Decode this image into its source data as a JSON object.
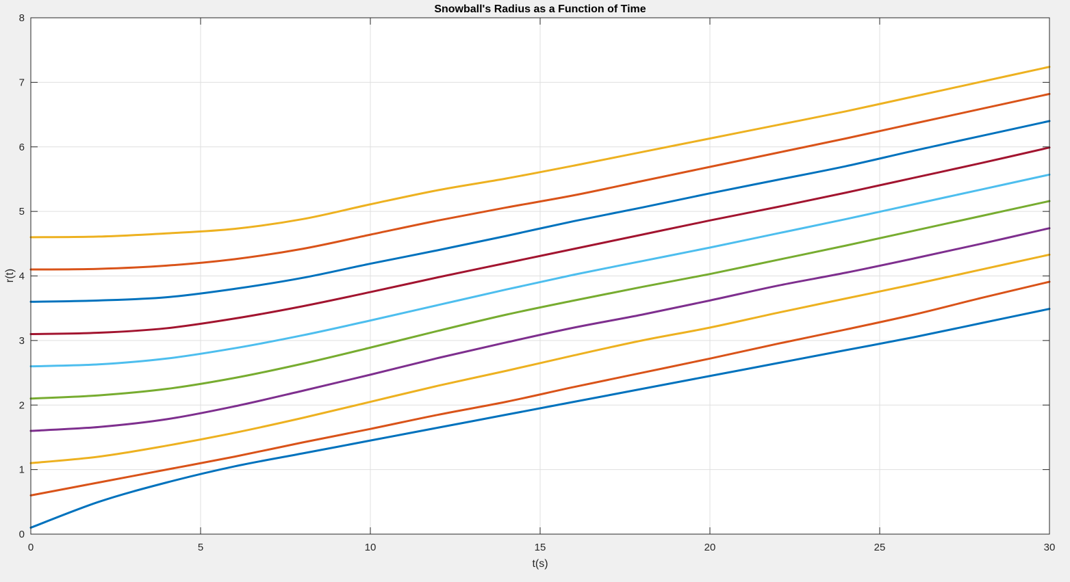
{
  "chart_data": {
    "type": "line",
    "title": "Snowball's Radius as a Function of Time",
    "xlabel": "t(s)",
    "ylabel": "r(t)",
    "xlim": [
      0,
      30
    ],
    "ylim": [
      0,
      8
    ],
    "xticks": [
      0,
      5,
      10,
      15,
      20,
      25,
      30
    ],
    "yticks": [
      0,
      1,
      2,
      3,
      4,
      5,
      6,
      7,
      8
    ],
    "grid": true,
    "legend": "none",
    "x": [
      0,
      2,
      4,
      6,
      8,
      10,
      12,
      14,
      16,
      18,
      20,
      22,
      24,
      26,
      28,
      30
    ],
    "series": [
      {
        "color": "#0072BD",
        "values": [
          0.1,
          0.5,
          0.8,
          1.05,
          1.25,
          1.45,
          1.65,
          1.85,
          2.05,
          2.25,
          2.45,
          2.65,
          2.85,
          3.05,
          3.27,
          3.49
        ]
      },
      {
        "color": "#D95319",
        "values": [
          0.6,
          0.8,
          1.0,
          1.2,
          1.42,
          1.63,
          1.85,
          2.05,
          2.28,
          2.5,
          2.72,
          2.95,
          3.17,
          3.4,
          3.66,
          3.91
        ]
      },
      {
        "color": "#EDB120",
        "values": [
          1.1,
          1.2,
          1.37,
          1.57,
          1.8,
          2.05,
          2.3,
          2.53,
          2.77,
          3.0,
          3.2,
          3.43,
          3.65,
          3.87,
          4.1,
          4.33
        ]
      },
      {
        "color": "#7E2F8E",
        "values": [
          1.6,
          1.66,
          1.78,
          1.98,
          2.22,
          2.47,
          2.73,
          2.97,
          3.2,
          3.4,
          3.62,
          3.85,
          4.05,
          4.27,
          4.5,
          4.74
        ]
      },
      {
        "color": "#77AC30",
        "values": [
          2.1,
          2.15,
          2.25,
          2.42,
          2.64,
          2.89,
          3.15,
          3.4,
          3.62,
          3.83,
          4.03,
          4.25,
          4.47,
          4.7,
          4.93,
          5.16
        ]
      },
      {
        "color": "#4DBEEE",
        "values": [
          2.6,
          2.63,
          2.72,
          2.88,
          3.08,
          3.31,
          3.55,
          3.79,
          4.02,
          4.23,
          4.44,
          4.66,
          4.88,
          5.11,
          5.34,
          5.57
        ]
      },
      {
        "color": "#A2142F",
        "values": [
          3.1,
          3.12,
          3.19,
          3.34,
          3.53,
          3.75,
          3.98,
          4.2,
          4.42,
          4.64,
          4.86,
          5.07,
          5.29,
          5.52,
          5.75,
          5.99
        ]
      },
      {
        "color": "#0072BD",
        "values": [
          3.6,
          3.62,
          3.67,
          3.8,
          3.97,
          4.19,
          4.4,
          4.62,
          4.85,
          5.06,
          5.28,
          5.49,
          5.7,
          5.94,
          6.17,
          6.4
        ]
      },
      {
        "color": "#D95319",
        "values": [
          4.1,
          4.11,
          4.16,
          4.26,
          4.42,
          4.64,
          4.86,
          5.06,
          5.25,
          5.47,
          5.69,
          5.91,
          6.13,
          6.36,
          6.59,
          6.82
        ]
      },
      {
        "color": "#EDB120",
        "values": [
          4.6,
          4.61,
          4.66,
          4.73,
          4.88,
          5.11,
          5.33,
          5.51,
          5.71,
          5.92,
          6.13,
          6.34,
          6.55,
          6.78,
          7.01,
          7.24
        ]
      }
    ]
  }
}
